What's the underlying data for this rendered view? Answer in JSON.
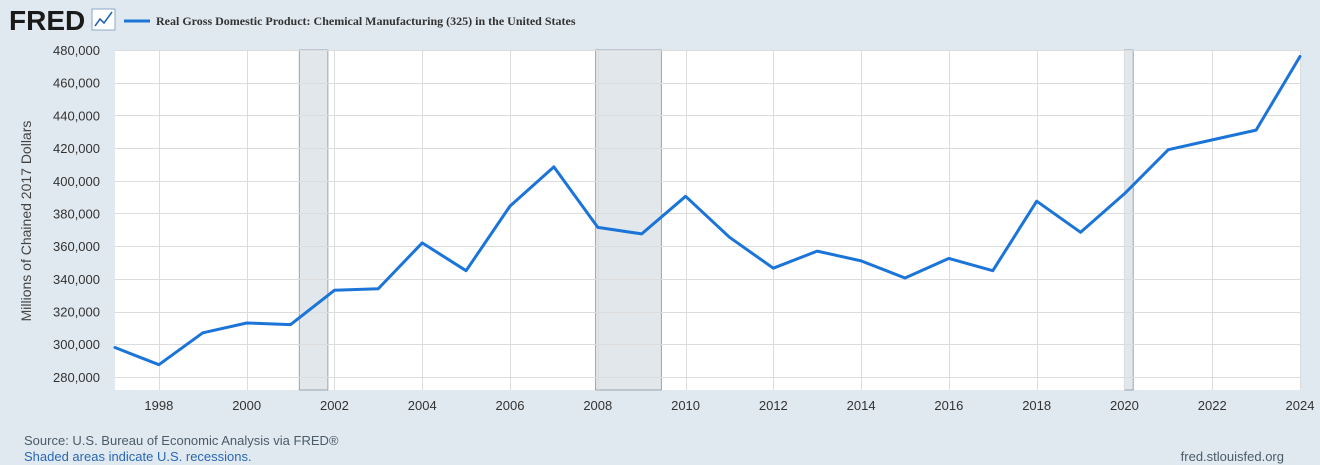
{
  "header": {
    "logo_text": "FRED",
    "logo_icon": "chart-line-icon"
  },
  "footer": {
    "source": "Source: U.S. Bureau of Economic Analysis via FRED®",
    "recession_note": "Shaded areas indicate U.S. recessions.",
    "site": "fred.stlouisfed.org"
  },
  "colors": {
    "page_bg": "#e1e9f0",
    "plot_bg": "#ffffff",
    "series": "#1b74d8",
    "grid": "#dcdcdc",
    "recession": "#e2e7ec",
    "axis_text": "#333333",
    "logo": "#1a1a1a"
  },
  "chart_data": {
    "type": "line",
    "title": "Real Gross Domestic Product: Chemical Manufacturing (325) in the United States",
    "xlabel": "",
    "ylabel": "Millions of Chained 2017 Dollars",
    "xlim": [
      1997,
      2024
    ],
    "ylim": [
      272000,
      480000
    ],
    "yticks": [
      280000,
      300000,
      320000,
      340000,
      360000,
      380000,
      400000,
      420000,
      440000,
      460000,
      480000
    ],
    "ytick_labels": [
      "280,000",
      "300,000",
      "320,000",
      "340,000",
      "360,000",
      "380,000",
      "400,000",
      "420,000",
      "440,000",
      "460,000",
      "480,000"
    ],
    "xticks": [
      1998,
      2000,
      2002,
      2004,
      2006,
      2008,
      2010,
      2012,
      2014,
      2016,
      2018,
      2020,
      2022,
      2024
    ],
    "xtick_labels": [
      "1998",
      "2000",
      "2002",
      "2004",
      "2006",
      "2008",
      "2010",
      "2012",
      "2014",
      "2016",
      "2018",
      "2020",
      "2022",
      "2024"
    ],
    "grid": true,
    "legend": "top-left",
    "recessions": [
      [
        2001.2,
        2001.85
      ],
      [
        2007.95,
        2009.45
      ],
      [
        2020.0,
        2020.2
      ]
    ],
    "series": [
      {
        "name": "Real Gross Domestic Product: Chemical Manufacturing (325) in the United States",
        "x": [
          1997,
          1998,
          1999,
          2000,
          2001,
          2002,
          2003,
          2004,
          2005,
          2006,
          2007,
          2008,
          2009,
          2010,
          2011,
          2012,
          2013,
          2014,
          2015,
          2016,
          2017,
          2018,
          2019,
          2020,
          2021,
          2022,
          2023,
          2024
        ],
        "values": [
          298000,
          287500,
          307000,
          313000,
          312000,
          333000,
          334000,
          362000,
          345000,
          384500,
          408500,
          371500,
          367500,
          390500,
          365500,
          346500,
          357000,
          351000,
          340500,
          352500,
          345000,
          387500,
          368500,
          392000,
          419000,
          425000,
          431000,
          476000
        ]
      }
    ]
  }
}
